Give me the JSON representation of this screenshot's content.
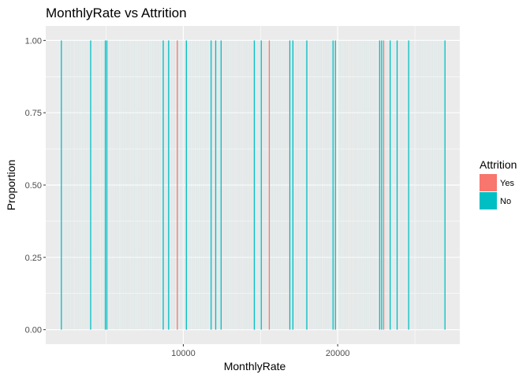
{
  "chart_data": {
    "type": "bar",
    "title": "MonthlyRate vs Attrition",
    "xlabel": "MonthlyRate",
    "ylabel": "Proportion",
    "xlim": [
      1090,
      27910
    ],
    "ylim": [
      -0.05,
      1.05
    ],
    "x_ticks": [
      10000,
      20000
    ],
    "x_tick_labels": [
      "10000",
      "20000"
    ],
    "y_ticks": [
      0,
      0.25,
      0.5,
      0.75,
      1
    ],
    "y_tick_labels": [
      "0.00",
      "0.25",
      "0.50",
      "0.75",
      "1.00"
    ],
    "grid": true,
    "legend": {
      "title": "Attrition",
      "position": "right",
      "entries": [
        {
          "label": "Yes",
          "color": "#F8766D"
        },
        {
          "label": "No",
          "color": "#00BFC4"
        }
      ]
    },
    "series": [
      {
        "name": "Yes",
        "color": "#F8766D",
        "x": [
          9610,
          15570,
          22980
        ],
        "values": [
          1,
          1,
          1
        ]
      },
      {
        "name": "No",
        "color": "#00BFC4",
        "x": [
          2100,
          4000,
          4950,
          5050,
          8700,
          9050,
          10200,
          11800,
          12100,
          12450,
          14600,
          15050,
          16900,
          17100,
          18000,
          19700,
          19850,
          22720,
          22850,
          23400,
          23850,
          24600,
          26950
        ],
        "values": [
          1,
          1,
          1,
          1,
          1,
          1,
          1,
          1,
          1,
          1,
          1,
          1,
          1,
          1,
          1,
          1,
          1,
          1,
          1,
          1,
          1,
          1,
          1
        ]
      }
    ]
  },
  "colors": {
    "panel_background": "#EBEBEB",
    "gridline": "#FFFFFF",
    "faint_bar": "#C9E2E2"
  }
}
